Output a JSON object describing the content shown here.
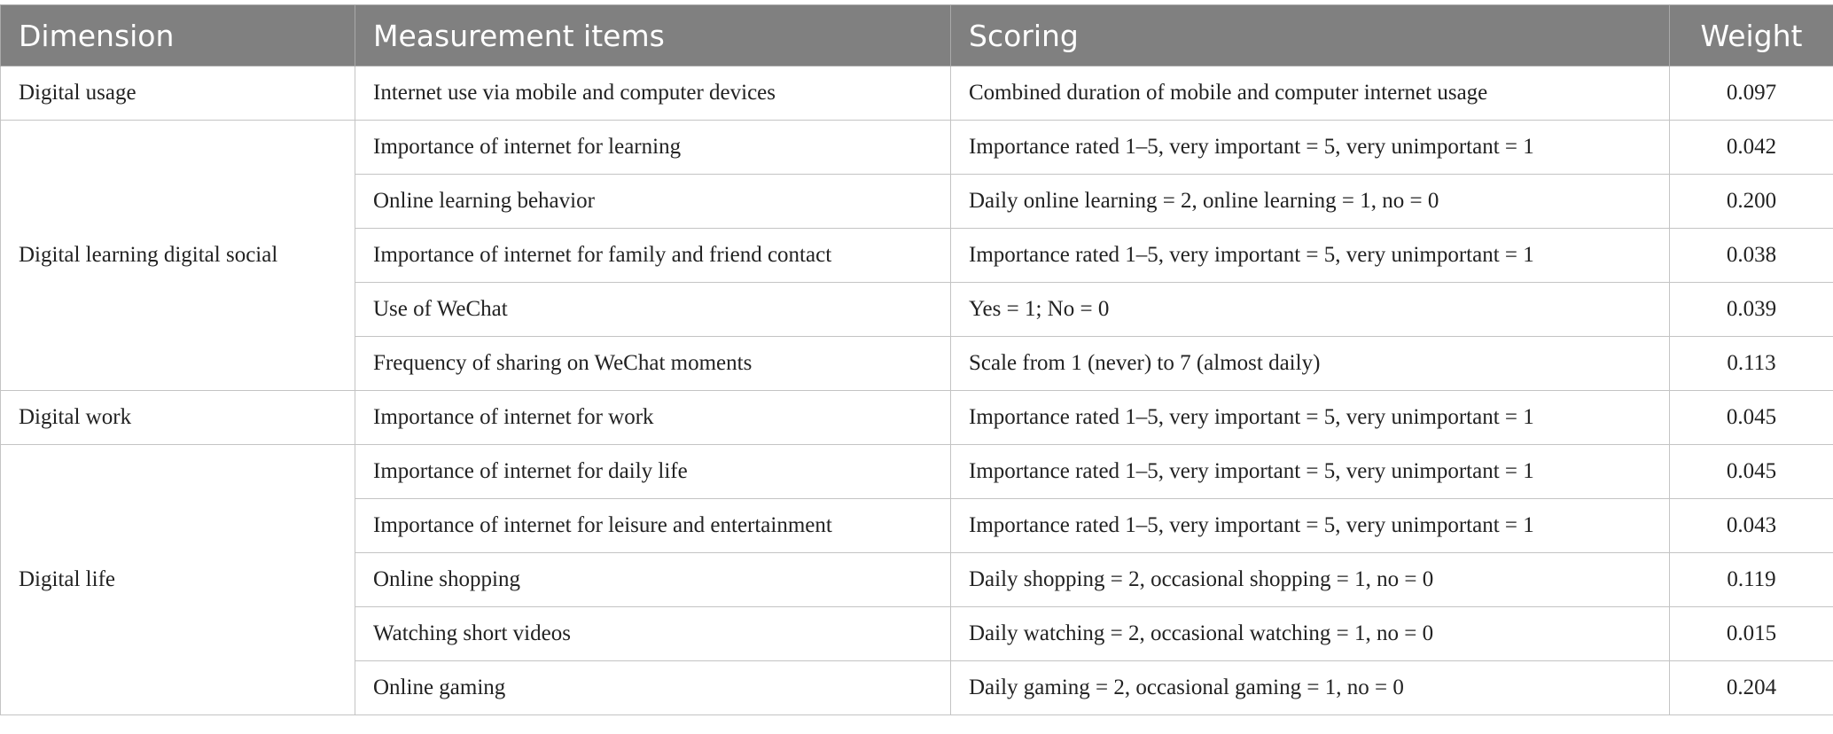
{
  "headers": [
    "Dimension",
    "Measurement items",
    "Scoring",
    "Weight"
  ],
  "groups": [
    {
      "dimension": "Digital usage",
      "rows": [
        {
          "item": "Internet use via mobile and computer devices",
          "scoring": "Combined duration of mobile and computer internet usage",
          "weight": "0.097"
        }
      ]
    },
    {
      "dimension": "Digital learning digital social",
      "rows": [
        {
          "item": "Importance of internet for learning",
          "scoring": "Importance rated 1–5, very important = 5, very unimportant = 1",
          "weight": "0.042"
        },
        {
          "item": "Online learning behavior",
          "scoring": "Daily online learning = 2, online learning = 1, no = 0",
          "weight": "0.200"
        },
        {
          "item": "Importance of internet for family and friend contact",
          "scoring": "Importance rated 1–5, very important = 5, very unimportant = 1",
          "weight": "0.038"
        },
        {
          "item": "Use of WeChat",
          "scoring": "Yes = 1; No = 0",
          "weight": "0.039"
        },
        {
          "item": "Frequency of sharing on WeChat moments",
          "scoring": "Scale from 1 (never) to 7 (almost daily)",
          "weight": "0.113"
        }
      ]
    },
    {
      "dimension": "Digital work",
      "rows": [
        {
          "item": "Importance of internet for work",
          "scoring": "Importance rated 1–5, very important = 5, very unimportant = 1",
          "weight": "0.045"
        }
      ]
    },
    {
      "dimension": "Digital life",
      "rows": [
        {
          "item": "Importance of internet for daily life",
          "scoring": "Importance rated 1–5, very important = 5, very unimportant = 1",
          "weight": "0.045"
        },
        {
          "item": "Importance of internet for leisure and entertainment",
          "scoring": "Importance rated 1–5, very important = 5, very unimportant = 1",
          "weight": "0.043"
        },
        {
          "item": "Online shopping",
          "scoring": "Daily shopping = 2, occasional shopping = 1, no = 0",
          "weight": "0.119"
        },
        {
          "item": "Watching short videos",
          "scoring": "Daily watching = 2, occasional watching = 1, no = 0",
          "weight": "0.015"
        },
        {
          "item": "Online gaming",
          "scoring": "Daily gaming = 2, occasional gaming = 1, no = 0",
          "weight": "0.204"
        }
      ]
    }
  ]
}
